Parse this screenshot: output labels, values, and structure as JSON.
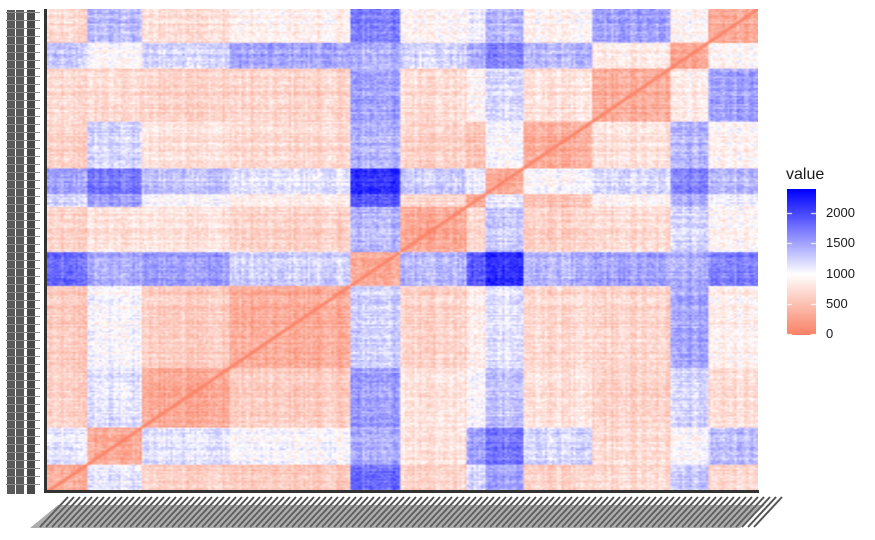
{
  "chart_data": {
    "type": "heatmap",
    "title": "",
    "xlabel": "",
    "ylabel": "",
    "legend": {
      "title": "value",
      "position": "right",
      "ticks": [
        2000,
        1500,
        1000,
        500,
        0
      ],
      "range": [
        0,
        2400
      ],
      "midpoint": 1000,
      "low_color": "#FA8266",
      "mid_color": "#FFFFFF",
      "high_color": "#0000FF"
    },
    "n_rows": 300,
    "n_cols": 300,
    "block_boundaries": [
      0,
      17,
      40,
      77,
      128,
      149,
      177,
      185,
      201,
      230,
      263,
      279,
      300
    ],
    "block_diagonal_value": 330,
    "block_mean_values": [
      [
        330,
        1100,
        620,
        560,
        1800,
        650,
        1200,
        1500,
        620,
        680,
        1300,
        680
      ],
      [
        1100,
        330,
        1150,
        1000,
        1450,
        780,
        1500,
        1750,
        1200,
        700,
        1000,
        1350
      ],
      [
        620,
        1150,
        330,
        600,
        1550,
        800,
        1000,
        1350,
        760,
        640,
        1250,
        740
      ],
      [
        560,
        1000,
        600,
        330,
        1250,
        650,
        850,
        1150,
        680,
        650,
        1500,
        880
      ],
      [
        1800,
        1450,
        1550,
        1250,
        330,
        1400,
        1900,
        2150,
        1400,
        1500,
        1450,
        1700
      ],
      [
        650,
        780,
        800,
        650,
        1400,
        330,
        700,
        1300,
        640,
        720,
        1250,
        940
      ],
      [
        1200,
        1500,
        1000,
        850,
        1900,
        700,
        330,
        1100,
        500,
        900,
        1450,
        1050
      ],
      [
        1500,
        1750,
        1350,
        1150,
        2150,
        1300,
        1100,
        330,
        1000,
        1200,
        1700,
        1400
      ],
      [
        620,
        1200,
        760,
        680,
        1400,
        640,
        500,
        1000,
        330,
        750,
        1400,
        900
      ],
      [
        680,
        700,
        640,
        650,
        1500,
        720,
        900,
        1200,
        750,
        330,
        850,
        1500
      ],
      [
        1300,
        1000,
        1250,
        1500,
        1450,
        1250,
        1450,
        1700,
        1400,
        850,
        330,
        950
      ],
      [
        680,
        1350,
        740,
        880,
        1700,
        940,
        1050,
        1400,
        900,
        1500,
        950,
        330
      ]
    ]
  }
}
